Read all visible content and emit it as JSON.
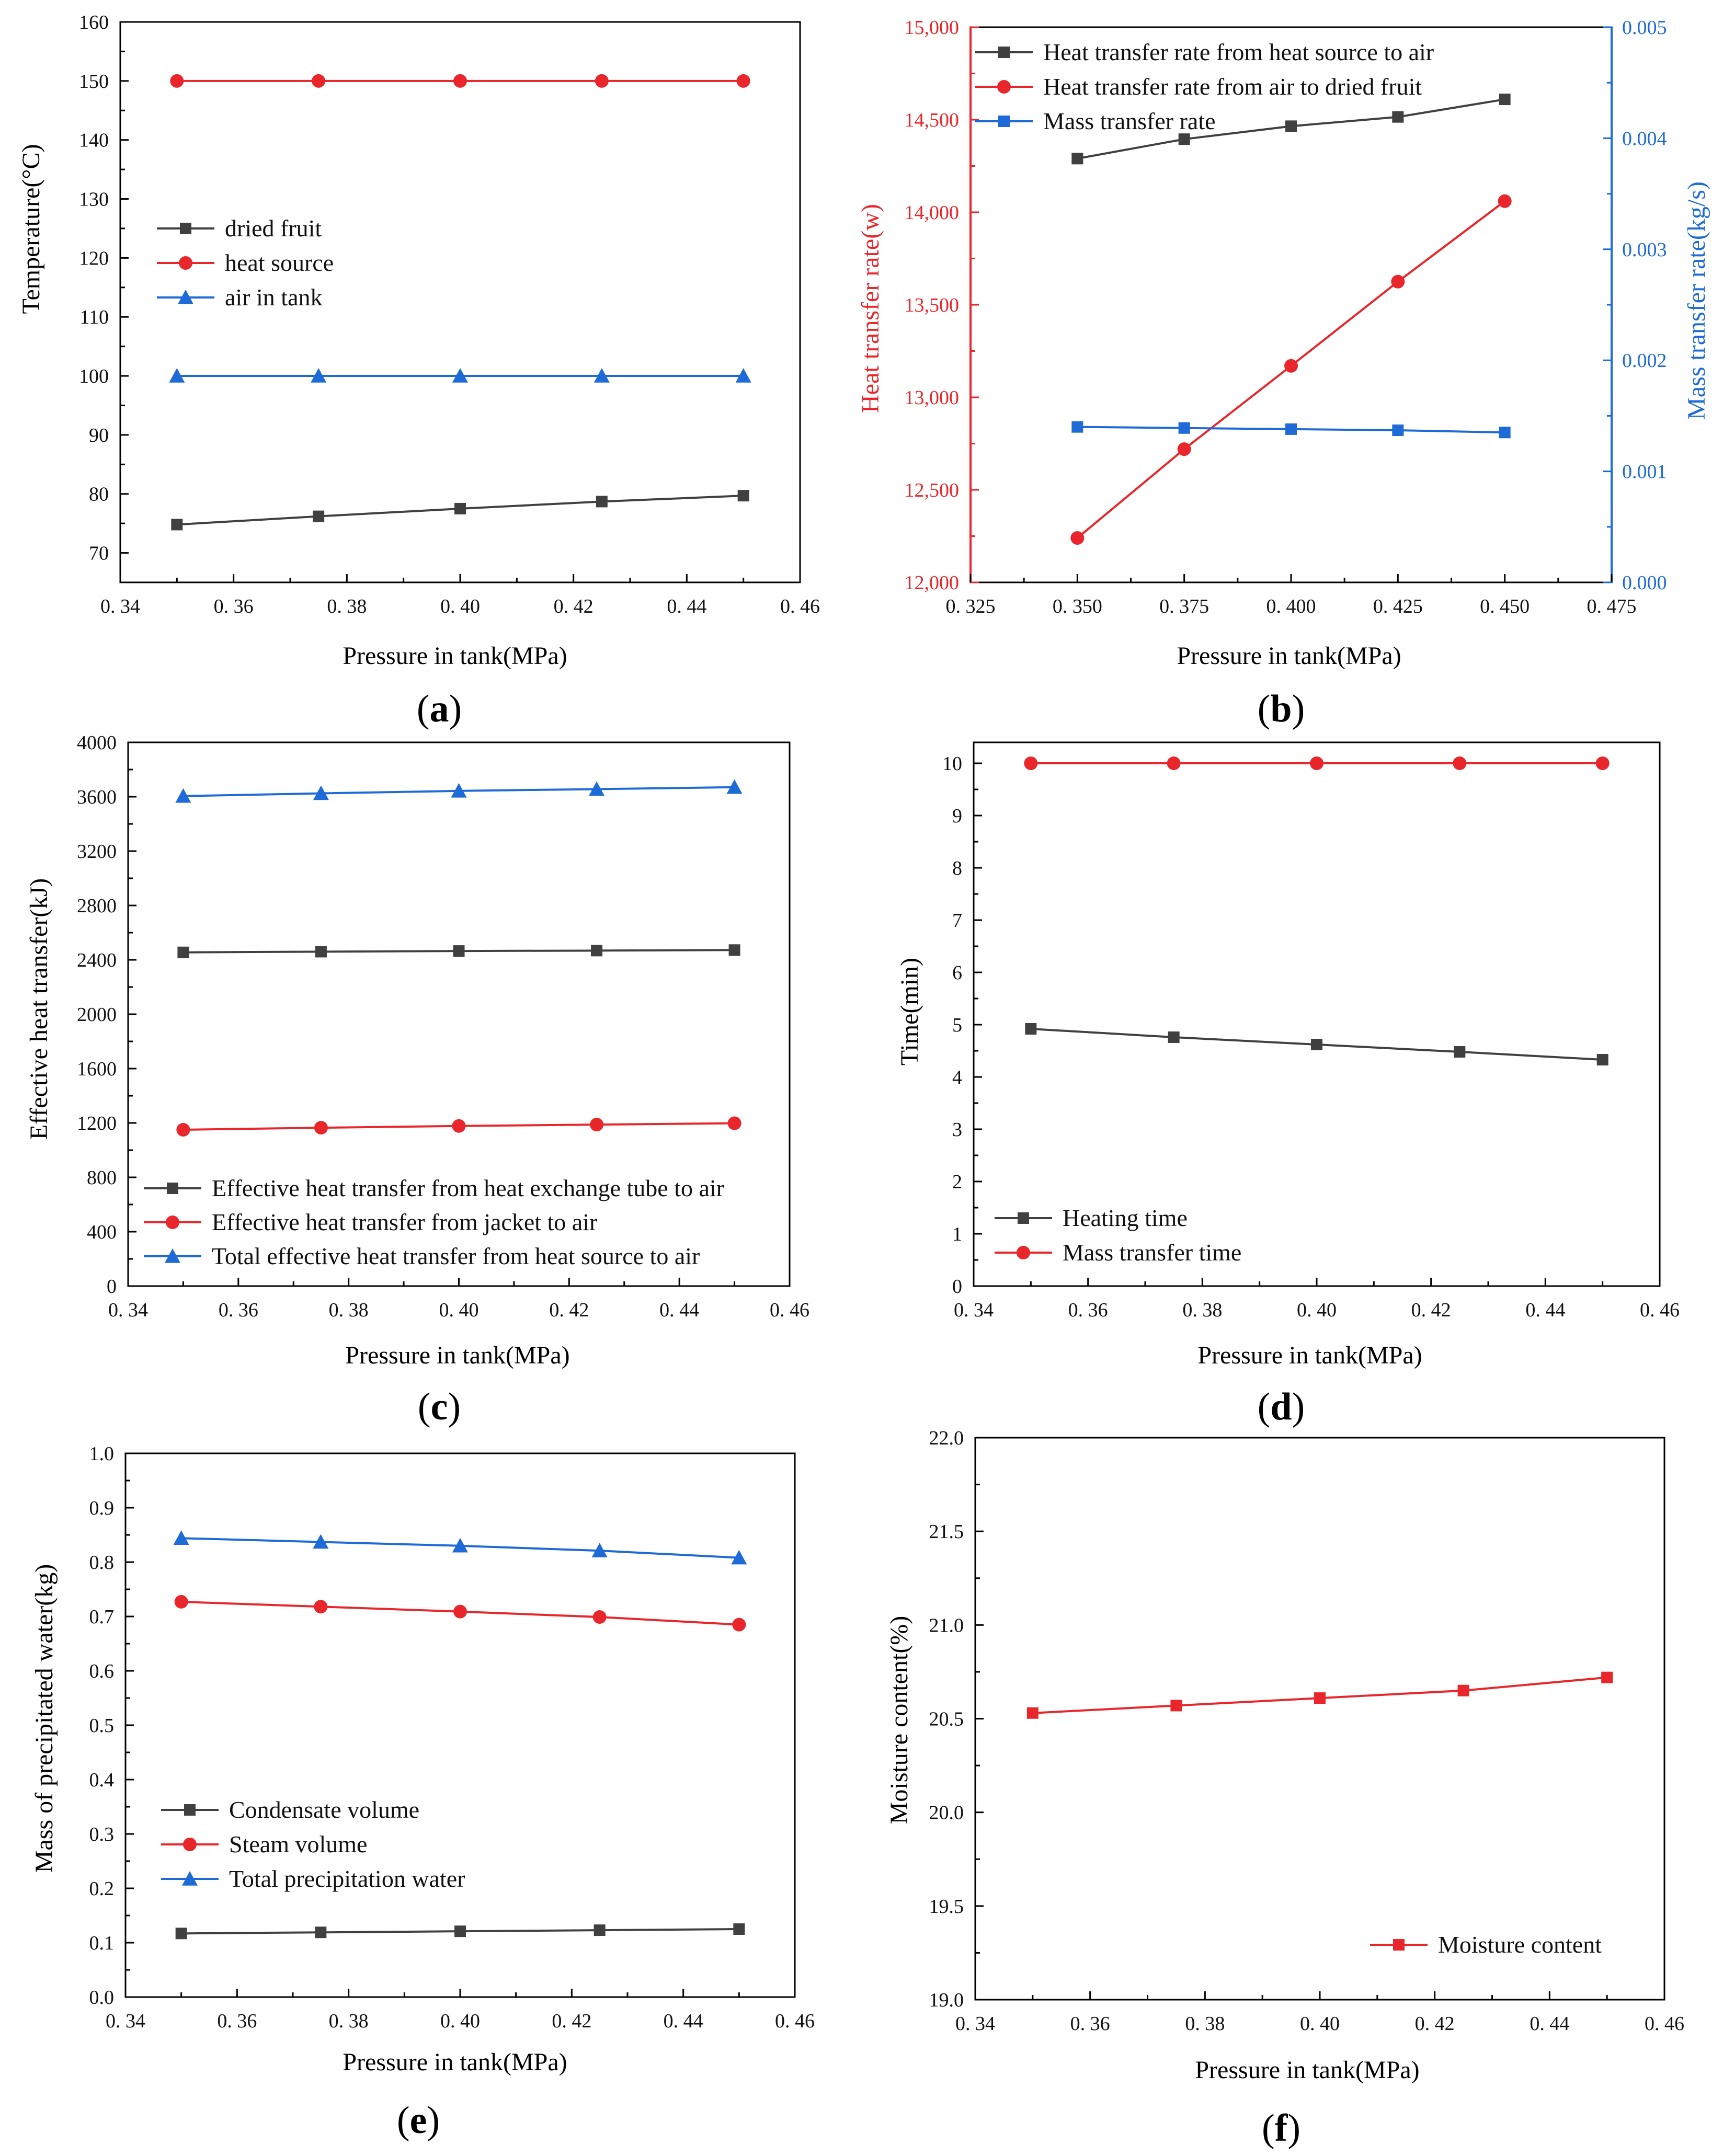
{
  "colors": {
    "black": "#404040",
    "red": "#e8262b",
    "blue": "#1e6ad6",
    "axis": "#000000"
  },
  "chart_data": [
    {
      "type": "line",
      "caption": "a",
      "xlabel": "Pressure in tank(MPa)",
      "ylabel": "Temperature(°C)",
      "xlim": [
        0.34,
        0.46
      ],
      "ylim": [
        65,
        160
      ],
      "xticks": [
        0.34,
        0.36,
        0.38,
        0.4,
        0.42,
        0.44,
        0.46
      ],
      "xtick_labels": [
        "0. 34",
        "0. 36",
        "0. 38",
        "0. 40",
        "0. 42",
        "0. 44",
        "0. 46"
      ],
      "yticks": [
        70,
        80,
        90,
        100,
        110,
        120,
        130,
        140,
        150,
        160
      ],
      "ytick_labels": [
        "70",
        "80",
        "90",
        "100",
        "110",
        "120",
        "130",
        "140",
        "150",
        "160"
      ],
      "legend_position": "center-left",
      "series": [
        {
          "name": "dried fruit",
          "color": "black",
          "marker": "square",
          "x": [
            0.35,
            0.375,
            0.4,
            0.425,
            0.45
          ],
          "y": [
            74.8,
            76.2,
            77.5,
            78.7,
            79.7
          ]
        },
        {
          "name": "heat source",
          "color": "red",
          "marker": "circle",
          "x": [
            0.35,
            0.375,
            0.4,
            0.425,
            0.45
          ],
          "y": [
            150,
            150,
            150,
            150,
            150
          ]
        },
        {
          "name": "air in tank",
          "color": "blue",
          "marker": "triangle",
          "x": [
            0.35,
            0.375,
            0.4,
            0.425,
            0.45
          ],
          "y": [
            100,
            100,
            100,
            100,
            100
          ]
        }
      ]
    },
    {
      "type": "line",
      "caption": "b",
      "xlabel": "Pressure in tank(MPa)",
      "ylabel": "Heat transfer rate(w)",
      "ylabel_right": "Mass transfer rate(kg/s)",
      "xlim": [
        0.325,
        0.475
      ],
      "ylim": [
        12000,
        15000
      ],
      "ylim_right": [
        0,
        0.005
      ],
      "xticks": [
        0.325,
        0.35,
        0.375,
        0.4,
        0.425,
        0.45,
        0.475
      ],
      "xtick_labels": [
        "0. 325",
        "0. 350",
        "0. 375",
        "0. 400",
        "0. 425",
        "0. 450",
        "0. 475"
      ],
      "yticks": [
        12000,
        12500,
        13000,
        13500,
        14000,
        14500,
        15000
      ],
      "ytick_labels": [
        "12,000",
        "12,500",
        "13,000",
        "13,500",
        "14,000",
        "14,500",
        "15,000"
      ],
      "yticks_right": [
        0,
        0.001,
        0.002,
        0.003,
        0.004,
        0.005
      ],
      "ytick_labels_right": [
        "0.000",
        "0.001",
        "0.002",
        "0.003",
        "0.004",
        "0.005"
      ],
      "legend_position": "top-left",
      "series": [
        {
          "name": "Heat transfer rate from heat source to air",
          "color": "black",
          "marker": "square",
          "axis": "left",
          "x": [
            0.35,
            0.375,
            0.4,
            0.425,
            0.45
          ],
          "y": [
            14290,
            14395,
            14465,
            14515,
            14610
          ]
        },
        {
          "name": "Heat transfer rate from air to dried fruit",
          "color": "red",
          "marker": "circle",
          "axis": "left",
          "x": [
            0.35,
            0.375,
            0.4,
            0.425,
            0.45
          ],
          "y": [
            12240,
            12720,
            13170,
            13625,
            14060
          ]
        },
        {
          "name": "Mass transfer rate",
          "color": "blue",
          "marker": "square",
          "axis": "right",
          "x": [
            0.35,
            0.375,
            0.4,
            0.425,
            0.45
          ],
          "y": [
            0.0014,
            0.00139,
            0.00138,
            0.00137,
            0.00135
          ]
        }
      ]
    },
    {
      "type": "line",
      "caption": "c",
      "xlabel": "Pressure in tank(MPa)",
      "ylabel": "Effective heat transfer(kJ)",
      "xlim": [
        0.34,
        0.46
      ],
      "ylim": [
        0,
        4000
      ],
      "xticks": [
        0.34,
        0.36,
        0.38,
        0.4,
        0.42,
        0.44,
        0.46
      ],
      "xtick_labels": [
        "0. 34",
        "0. 36",
        "0. 38",
        "0. 40",
        "0. 42",
        "0. 44",
        "0. 46"
      ],
      "yticks": [
        0,
        400,
        800,
        1200,
        1600,
        2000,
        2400,
        2800,
        3200,
        3600,
        4000
      ],
      "ytick_labels": [
        "0",
        "400",
        "800",
        "1200",
        "1600",
        "2000",
        "2400",
        "2800",
        "3200",
        "3600",
        "4000"
      ],
      "legend_position": "bottom-left",
      "series": [
        {
          "name": "Effective heat transfer from heat exchange tube to air",
          "color": "black",
          "marker": "square",
          "x": [
            0.35,
            0.375,
            0.4,
            0.425,
            0.45
          ],
          "y": [
            2455,
            2460,
            2465,
            2468,
            2472
          ]
        },
        {
          "name": "Effective heat transfer from jacket to air",
          "color": "red",
          "marker": "circle",
          "x": [
            0.35,
            0.375,
            0.4,
            0.425,
            0.45
          ],
          "y": [
            1150,
            1165,
            1178,
            1188,
            1198
          ]
        },
        {
          "name": "Total effective heat transfer from heat source to air",
          "color": "blue",
          "marker": "triangle",
          "x": [
            0.35,
            0.375,
            0.4,
            0.425,
            0.45
          ],
          "y": [
            3605,
            3625,
            3643,
            3656,
            3670
          ]
        }
      ]
    },
    {
      "type": "line",
      "caption": "d",
      "xlabel": "Pressure in tank(MPa)",
      "ylabel": "Time(min)",
      "xlim": [
        0.34,
        0.46
      ],
      "ylim": [
        0,
        10.4
      ],
      "xticks": [
        0.34,
        0.36,
        0.38,
        0.4,
        0.42,
        0.44,
        0.46
      ],
      "xtick_labels": [
        "0. 34",
        "0. 36",
        "0. 38",
        "0. 40",
        "0. 42",
        "0. 44",
        "0. 46"
      ],
      "yticks": [
        0,
        1,
        2,
        3,
        4,
        5,
        6,
        7,
        8,
        9,
        10
      ],
      "ytick_labels": [
        "0",
        "1",
        "2",
        "3",
        "4",
        "5",
        "6",
        "7",
        "8",
        "9",
        "10"
      ],
      "legend_position": "bottom-left",
      "series": [
        {
          "name": "Heating time",
          "color": "black",
          "marker": "square",
          "x": [
            0.35,
            0.375,
            0.4,
            0.425,
            0.45
          ],
          "y": [
            4.92,
            4.76,
            4.62,
            4.48,
            4.33
          ]
        },
        {
          "name": "Mass transfer time",
          "color": "red",
          "marker": "circle",
          "x": [
            0.35,
            0.375,
            0.4,
            0.425,
            0.45
          ],
          "y": [
            10,
            10,
            10,
            10,
            10
          ]
        }
      ]
    },
    {
      "type": "line",
      "caption": "e",
      "xlabel": "Pressure in tank(MPa)",
      "ylabel": "Mass of precipitated water(kg)",
      "xlim": [
        0.34,
        0.46
      ],
      "ylim": [
        0,
        1.0
      ],
      "xticks": [
        0.34,
        0.36,
        0.38,
        0.4,
        0.42,
        0.44,
        0.46
      ],
      "xtick_labels": [
        "0. 34",
        "0. 36",
        "0. 38",
        "0. 40",
        "0. 42",
        "0. 44",
        "0. 46"
      ],
      "yticks": [
        0,
        0.1,
        0.2,
        0.3,
        0.4,
        0.5,
        0.6,
        0.7,
        0.8,
        0.9,
        1.0
      ],
      "ytick_labels": [
        "0.0",
        "0.1",
        "0.2",
        "0.3",
        "0.4",
        "0.5",
        "0.6",
        "0.7",
        "0.8",
        "0.9",
        "1.0"
      ],
      "legend_position": "center-left",
      "series": [
        {
          "name": "Condensate volume",
          "color": "black",
          "marker": "square",
          "x": [
            0.35,
            0.375,
            0.4,
            0.425,
            0.45
          ],
          "y": [
            0.117,
            0.119,
            0.121,
            0.123,
            0.125
          ]
        },
        {
          "name": "Steam volume",
          "color": "red",
          "marker": "circle",
          "x": [
            0.35,
            0.375,
            0.4,
            0.425,
            0.45
          ],
          "y": [
            0.727,
            0.718,
            0.709,
            0.699,
            0.685
          ]
        },
        {
          "name": "Total precipitation water",
          "color": "blue",
          "marker": "triangle",
          "x": [
            0.35,
            0.375,
            0.4,
            0.425,
            0.45
          ],
          "y": [
            0.844,
            0.837,
            0.83,
            0.821,
            0.808
          ]
        }
      ]
    },
    {
      "type": "line",
      "caption": "f",
      "xlabel": "Pressure in tank(MPa)",
      "ylabel": "Moisture content(%)",
      "xlim": [
        0.34,
        0.46
      ],
      "ylim": [
        19.0,
        22.0
      ],
      "xticks": [
        0.34,
        0.36,
        0.38,
        0.4,
        0.42,
        0.44,
        0.46
      ],
      "xtick_labels": [
        "0. 34",
        "0. 36",
        "0. 38",
        "0. 40",
        "0. 42",
        "0. 44",
        "0. 46"
      ],
      "yticks": [
        19.0,
        19.5,
        20.0,
        20.5,
        21.0,
        21.5,
        22.0
      ],
      "ytick_labels": [
        "19.0",
        "19.5",
        "20.0",
        "20.5",
        "21.0",
        "21.5",
        "22.0"
      ],
      "legend_position": "bottom-right",
      "series": [
        {
          "name": "Moisture content",
          "color": "red",
          "marker": "square",
          "x": [
            0.35,
            0.375,
            0.4,
            0.425,
            0.45
          ],
          "y": [
            20.53,
            20.57,
            20.61,
            20.65,
            20.72
          ]
        }
      ]
    }
  ]
}
